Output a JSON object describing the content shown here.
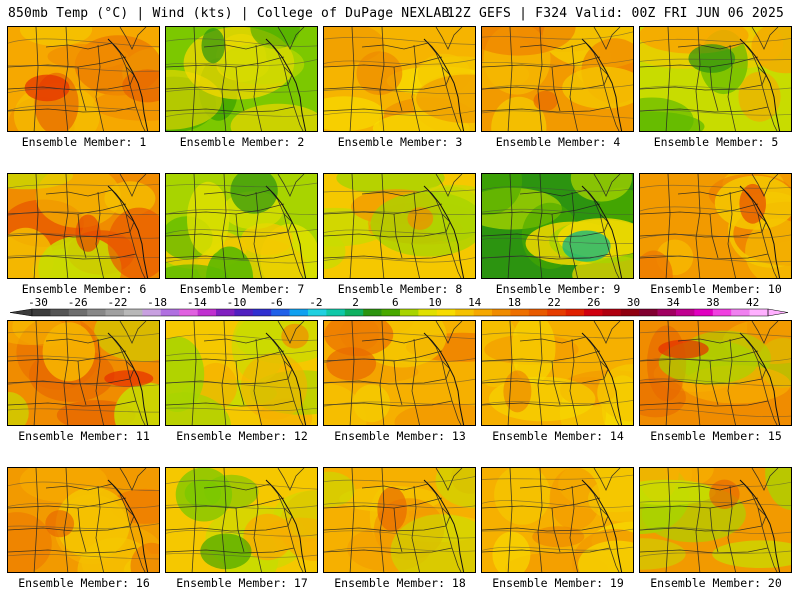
{
  "header": {
    "left_title": "850mb Temp (°C) | Wind (kts) | College of DuPage NEXLAB",
    "right_title": "12Z GEFS | F324 Valid: 00Z FRI JUN 06 2025"
  },
  "members": [
    {
      "label": "Ensemble Member: 1",
      "palette": [
        "#f6a800",
        "#f08c00",
        "#f5c200",
        "#e86a00"
      ],
      "accent": "#e62e00"
    },
    {
      "label": "Ensemble Member: 2",
      "palette": [
        "#7cc800",
        "#3fa500",
        "#c8dc00",
        "#f5d800"
      ],
      "accent": "#2c9410"
    },
    {
      "label": "Ensemble Member: 3",
      "palette": [
        "#f6b400",
        "#f5c800",
        "#f09600",
        "#f7dc00"
      ],
      "accent": "#ee8a00"
    },
    {
      "label": "Ensemble Member: 4",
      "palette": [
        "#f29a00",
        "#f6b800",
        "#ee7c00",
        "#f5c800"
      ],
      "accent": "#e86a00"
    },
    {
      "label": "Ensemble Member: 5",
      "palette": [
        "#c8dc00",
        "#f5c800",
        "#5cb800",
        "#f6a800"
      ],
      "accent": "#2c9410"
    },
    {
      "label": "Ensemble Member: 6",
      "palette": [
        "#f08c00",
        "#c8dc00",
        "#e85a00",
        "#f5c200"
      ],
      "accent": "#e64a00"
    },
    {
      "label": "Ensemble Member: 7",
      "palette": [
        "#a8d400",
        "#f5c800",
        "#5cb800",
        "#e0e000"
      ],
      "accent": "#2c9410"
    },
    {
      "label": "Ensemble Member: 8",
      "palette": [
        "#f5c800",
        "#c8dc00",
        "#f29a00",
        "#a8d400"
      ],
      "accent": "#f08c00"
    },
    {
      "label": "Ensemble Member: 9",
      "palette": [
        "#2c9410",
        "#48a800",
        "#a8d400",
        "#f5d800"
      ],
      "accent": "#00b48c"
    },
    {
      "label": "Ensemble Member: 10",
      "palette": [
        "#f29a00",
        "#f6b800",
        "#ee7c00",
        "#f5c800"
      ],
      "accent": "#e64a00"
    },
    {
      "label": "Ensemble Member: 11",
      "palette": [
        "#f08c00",
        "#e86a00",
        "#f6b400",
        "#c8dc00"
      ],
      "accent": "#e62e00"
    },
    {
      "label": "Ensemble Member: 12",
      "palette": [
        "#f5c800",
        "#c8dc00",
        "#f6b000",
        "#a8d400"
      ],
      "accent": "#f08c00"
    },
    {
      "label": "Ensemble Member: 13",
      "palette": [
        "#f6b000",
        "#f29a00",
        "#f5c800",
        "#ee7c00"
      ],
      "accent": "#e86a00"
    },
    {
      "label": "Ensemble Member: 14",
      "palette": [
        "#f6b000",
        "#f5c800",
        "#f29a00",
        "#f7dc00"
      ],
      "accent": "#ee8a00"
    },
    {
      "label": "Ensemble Member: 15",
      "palette": [
        "#f08c00",
        "#e86a00",
        "#f6b000",
        "#a8d400"
      ],
      "accent": "#e62e00"
    },
    {
      "label": "Ensemble Member: 16",
      "palette": [
        "#f29a00",
        "#f6b000",
        "#ee7c00",
        "#f5c800"
      ],
      "accent": "#e86a00"
    },
    {
      "label": "Ensemble Member: 17",
      "palette": [
        "#f5c800",
        "#c8dc00",
        "#7cc800",
        "#f6b000"
      ],
      "accent": "#48a800"
    },
    {
      "label": "Ensemble Member: 18",
      "palette": [
        "#f6b000",
        "#f5c800",
        "#f29a00",
        "#c8dc00"
      ],
      "accent": "#e86a00"
    },
    {
      "label": "Ensemble Member: 19",
      "palette": [
        "#f6b000",
        "#f5c800",
        "#f29a00",
        "#f7dc00"
      ],
      "accent": "#ee8a00"
    },
    {
      "label": "Ensemble Member: 20",
      "palette": [
        "#f29a00",
        "#f6b000",
        "#c8dc00",
        "#a8d400"
      ],
      "accent": "#e86a00"
    }
  ],
  "colorbar": {
    "tick_labels": [
      "-30",
      "-26",
      "-22",
      "-18",
      "-14",
      "-10",
      "-6",
      "-2",
      "2",
      "6",
      "10",
      "14",
      "18",
      "22",
      "26",
      "30",
      "34",
      "38",
      "42"
    ],
    "colors": [
      "#3c3c3c",
      "#555555",
      "#6e6e6e",
      "#888888",
      "#a0a0a0",
      "#b8b8b8",
      "#c8a0e0",
      "#b070e0",
      "#e060e0",
      "#c030d0",
      "#8020c0",
      "#5020c0",
      "#3030d0",
      "#2060e8",
      "#10a0f0",
      "#20d0e0",
      "#10c8a8",
      "#10b060",
      "#2c9410",
      "#48a800",
      "#a8d400",
      "#e0e000",
      "#f7dc00",
      "#f5c200",
      "#f6a800",
      "#f08c00",
      "#ee7000",
      "#e85a00",
      "#e63c00",
      "#e02000",
      "#d00010",
      "#b00010",
      "#900010",
      "#800030",
      "#a00060",
      "#c00090",
      "#e000c0",
      "#f040e0",
      "#f080f0",
      "#ffb0ff"
    ]
  }
}
